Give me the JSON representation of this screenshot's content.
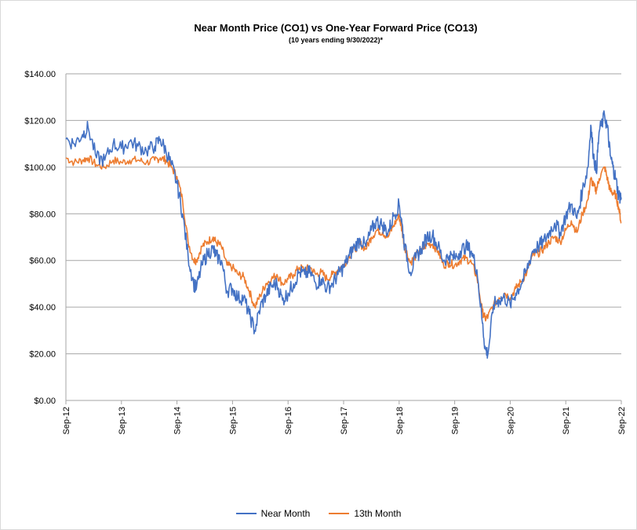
{
  "chart_data": {
    "type": "line",
    "title": "Near Month Price (CO1) vs One-Year Forward Price  (CO13)",
    "subtitle": "(10 years ending  9/30/2022)*",
    "ylim": [
      0,
      140
    ],
    "yticks": [
      "$0.00",
      "$20.00",
      "$40.00",
      "$60.00",
      "$80.00",
      "$100.00",
      "$120.00",
      "$140.00"
    ],
    "ytick_values": [
      0,
      20,
      40,
      60,
      80,
      100,
      120,
      140
    ],
    "xticks": [
      "Sep-12",
      "Sep-13",
      "Sep-14",
      "Sep-15",
      "Sep-16",
      "Sep-17",
      "Sep-18",
      "Sep-19",
      "Sep-20",
      "Sep-21",
      "Sep-22"
    ],
    "xtick_years": [
      2012.75,
      2013.75,
      2014.75,
      2015.75,
      2016.75,
      2017.75,
      2018.75,
      2019.75,
      2020.75,
      2021.75,
      2022.75
    ],
    "xlim": [
      2012.75,
      2022.75
    ],
    "grid": true,
    "legend": "bottom",
    "series": [
      {
        "name": "Near Month",
        "color": "#4472C4",
        "x": [
          2012.75,
          2012.9,
          2013.05,
          2013.15,
          2013.3,
          2013.45,
          2013.6,
          2013.75,
          2013.9,
          2014.05,
          2014.2,
          2014.35,
          2014.45,
          2014.55,
          2014.65,
          2014.75,
          2014.85,
          2014.95,
          2015.05,
          2015.1,
          2015.2,
          2015.3,
          2015.4,
          2015.45,
          2015.55,
          2015.65,
          2015.75,
          2015.85,
          2015.95,
          2016.05,
          2016.15,
          2016.25,
          2016.35,
          2016.45,
          2016.55,
          2016.65,
          2016.75,
          2016.85,
          2016.95,
          2017.05,
          2017.15,
          2017.25,
          2017.35,
          2017.45,
          2017.55,
          2017.65,
          2017.75,
          2017.85,
          2017.95,
          2018.05,
          2018.15,
          2018.25,
          2018.35,
          2018.45,
          2018.55,
          2018.65,
          2018.75,
          2018.8,
          2018.85,
          2018.95,
          2019.05,
          2019.15,
          2019.25,
          2019.35,
          2019.45,
          2019.55,
          2019.65,
          2019.75,
          2019.85,
          2019.95,
          2020.05,
          2020.15,
          2020.25,
          2020.3,
          2020.35,
          2020.45,
          2020.55,
          2020.65,
          2020.75,
          2020.85,
          2020.95,
          2021.05,
          2021.15,
          2021.25,
          2021.35,
          2021.45,
          2021.55,
          2021.65,
          2021.75,
          2021.85,
          2021.95,
          2022.05,
          2022.15,
          2022.2,
          2022.25,
          2022.3,
          2022.35,
          2022.45,
          2022.5,
          2022.55,
          2022.6,
          2022.65,
          2022.7,
          2022.75
        ],
        "values": [
          112,
          110,
          114,
          117,
          104,
          103,
          110,
          108,
          111,
          109,
          107,
          109,
          112,
          107,
          101,
          93,
          80,
          62,
          50,
          48,
          58,
          63,
          65,
          62,
          60,
          47,
          48,
          44,
          44,
          37,
          30,
          40,
          45,
          49,
          50,
          43,
          46,
          50,
          55,
          54,
          55,
          50,
          52,
          48,
          50,
          54,
          57,
          62,
          66,
          69,
          66,
          73,
          77,
          75,
          72,
          79,
          84,
          76,
          66,
          55,
          61,
          65,
          70,
          71,
          66,
          60,
          62,
          61,
          64,
          66,
          64,
          56,
          33,
          22,
          20,
          41,
          43,
          44,
          41,
          46,
          50,
          56,
          64,
          66,
          68,
          72,
          76,
          72,
          79,
          84,
          78,
          90,
          100,
          118,
          105,
          98,
          115,
          122,
          117,
          105,
          100,
          95,
          88,
          87
        ]
      },
      {
        "name": "13th Month",
        "color": "#ED7D31",
        "x": [
          2012.75,
          2012.9,
          2013.05,
          2013.15,
          2013.3,
          2013.45,
          2013.6,
          2013.75,
          2013.9,
          2014.05,
          2014.2,
          2014.35,
          2014.45,
          2014.55,
          2014.65,
          2014.75,
          2014.85,
          2014.95,
          2015.05,
          2015.1,
          2015.2,
          2015.3,
          2015.4,
          2015.45,
          2015.55,
          2015.65,
          2015.75,
          2015.85,
          2015.95,
          2016.05,
          2016.15,
          2016.25,
          2016.35,
          2016.45,
          2016.55,
          2016.65,
          2016.75,
          2016.85,
          2016.95,
          2017.05,
          2017.15,
          2017.25,
          2017.35,
          2017.45,
          2017.55,
          2017.65,
          2017.75,
          2017.85,
          2017.95,
          2018.05,
          2018.15,
          2018.25,
          2018.35,
          2018.45,
          2018.55,
          2018.65,
          2018.75,
          2018.8,
          2018.85,
          2018.95,
          2019.05,
          2019.15,
          2019.25,
          2019.35,
          2019.45,
          2019.55,
          2019.65,
          2019.75,
          2019.85,
          2019.95,
          2020.05,
          2020.15,
          2020.25,
          2020.3,
          2020.35,
          2020.45,
          2020.55,
          2020.65,
          2020.75,
          2020.85,
          2020.95,
          2021.05,
          2021.15,
          2021.25,
          2021.35,
          2021.45,
          2021.55,
          2021.65,
          2021.75,
          2021.85,
          2021.95,
          2022.05,
          2022.15,
          2022.2,
          2022.25,
          2022.3,
          2022.35,
          2022.45,
          2022.5,
          2022.55,
          2022.6,
          2022.65,
          2022.7,
          2022.75
        ],
        "values": [
          104,
          102,
          103,
          104,
          101,
          100,
          103,
          102,
          103,
          103,
          102,
          103,
          104,
          103,
          100,
          96,
          86,
          68,
          60,
          60,
          66,
          68,
          70,
          68,
          66,
          58,
          57,
          54,
          53,
          47,
          40,
          45,
          50,
          52,
          54,
          50,
          52,
          54,
          57,
          56,
          57,
          54,
          55,
          52,
          54,
          56,
          58,
          62,
          65,
          67,
          65,
          70,
          73,
          72,
          70,
          75,
          79,
          73,
          66,
          59,
          62,
          64,
          67,
          67,
          64,
          58,
          59,
          58,
          60,
          61,
          59,
          53,
          38,
          35,
          36,
          41,
          44,
          46,
          44,
          48,
          51,
          55,
          62,
          63,
          65,
          68,
          70,
          68,
          73,
          77,
          72,
          80,
          86,
          95,
          92,
          90,
          95,
          100,
          95,
          90,
          89,
          88,
          83,
          76
        ]
      }
    ]
  }
}
